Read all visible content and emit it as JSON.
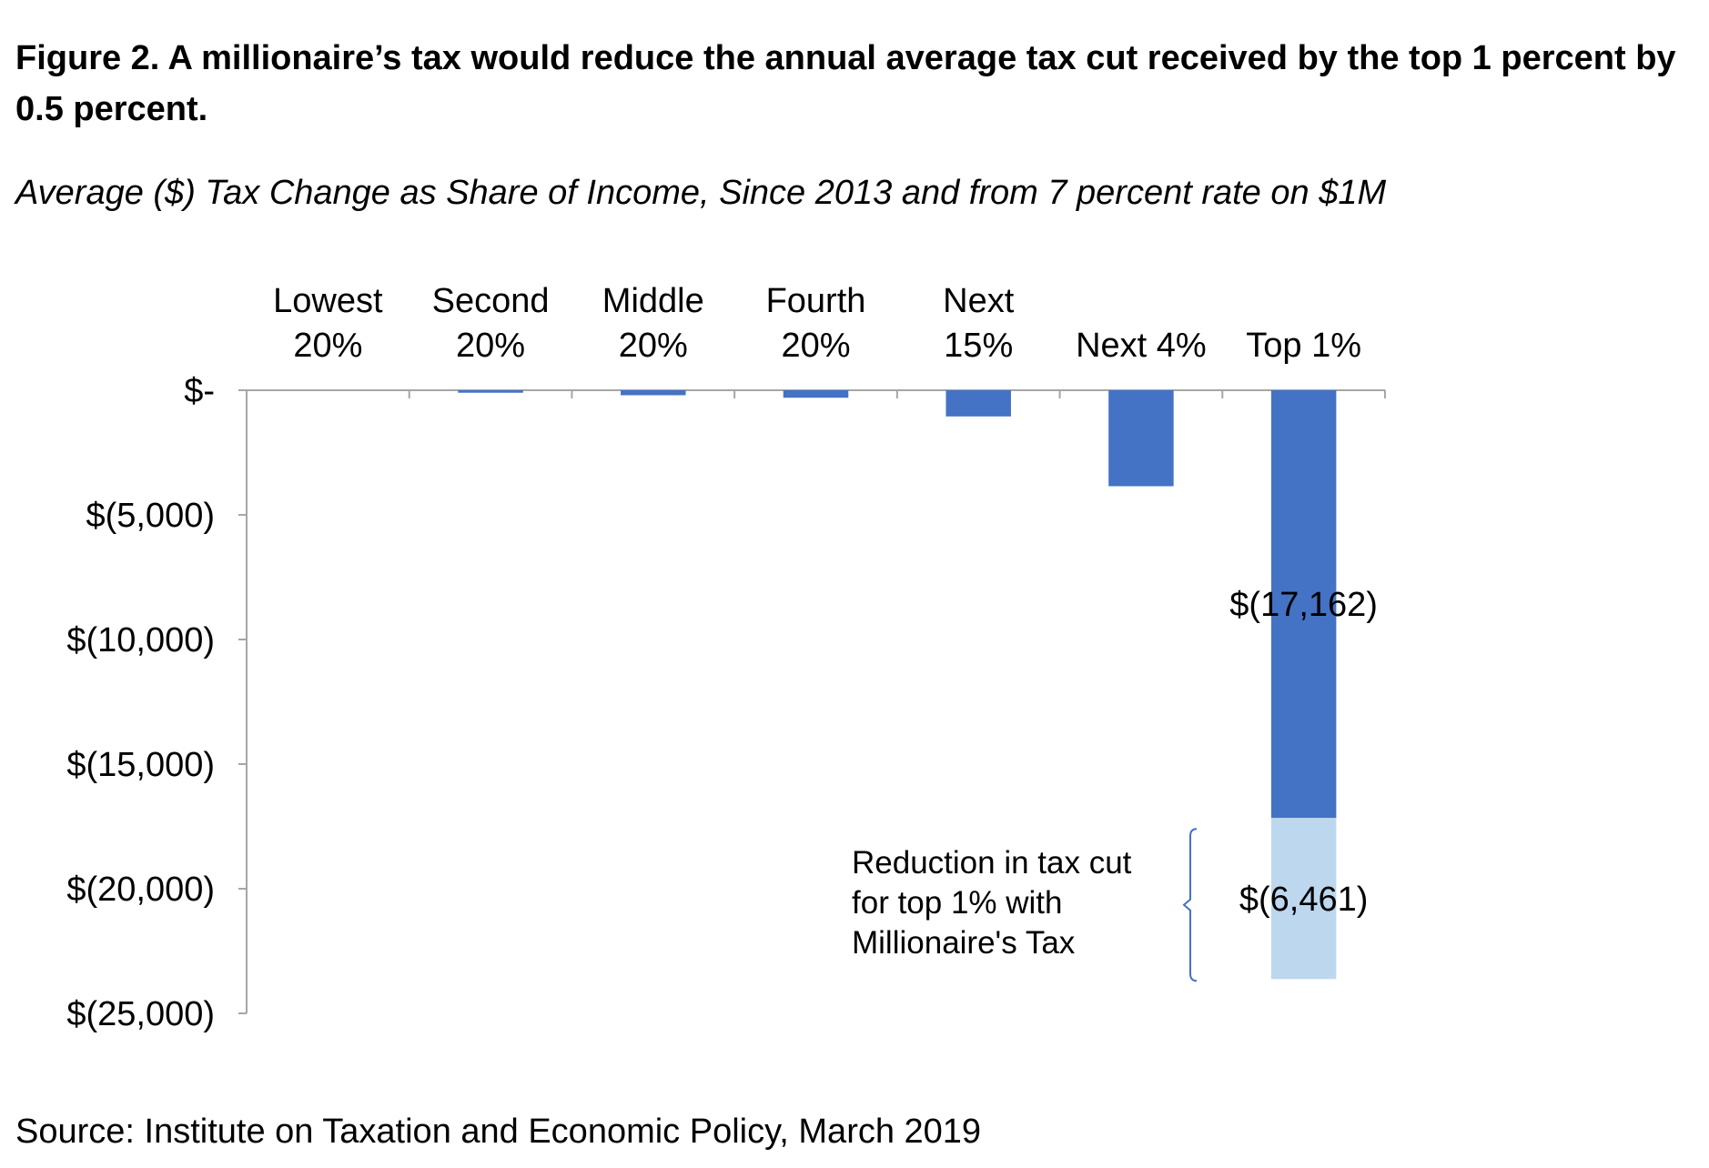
{
  "figure": {
    "title": "Figure 2.  A millionaire’s tax would reduce the annual average tax cut received by the top 1 percent by 0.5 percent.",
    "subtitle": "Average ($) Tax Change as Share of Income, Since 2013 and from 7 percent rate on $1M",
    "source": "Source: Institute on Taxation and Economic Policy, March 2019"
  },
  "chart_data": {
    "type": "bar",
    "stacked": true,
    "categories": [
      [
        "Lowest",
        "20%"
      ],
      [
        "Second",
        "20%"
      ],
      [
        "Middle",
        "20%"
      ],
      [
        "Fourth",
        "20%"
      ],
      [
        "Next",
        "15%"
      ],
      [
        "Next 4%"
      ],
      [
        "Top 1%"
      ]
    ],
    "series": [
      {
        "color": "#4472C4",
        "values": [
          0,
          -100,
          -200,
          -300,
          -1050,
          -3850,
          -17162
        ],
        "data_labels": [
          null,
          null,
          null,
          null,
          null,
          null,
          "$(17,162)"
        ]
      },
      {
        "color": "#BDD7EE",
        "values": [
          0,
          0,
          0,
          0,
          0,
          0,
          -6461
        ],
        "data_labels": [
          null,
          null,
          null,
          null,
          null,
          null,
          "$(6,461)"
        ]
      }
    ],
    "ylim": [
      -25000,
      0
    ],
    "yticks": [
      0,
      -5000,
      -10000,
      -15000,
      -20000,
      -25000
    ],
    "ytick_labels": [
      "$-",
      "$(5,000)",
      "$(10,000)",
      "$(15,000)",
      "$(20,000)",
      "$(25,000)"
    ],
    "xlabel": "",
    "ylabel": "",
    "category_axis_position": "top",
    "grid": false,
    "legend": "none",
    "annotations": [
      {
        "text": [
          "Reduction in tax cut",
          "for top 1% with",
          "Millionaire's Tax"
        ],
        "brace_color": "#4472C4",
        "target": "series 2, Top 1%"
      }
    ]
  }
}
